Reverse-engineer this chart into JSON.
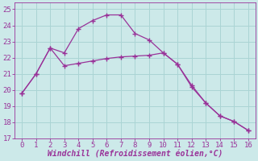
{
  "line1_x": [
    0,
    1,
    2,
    3,
    4,
    5,
    6,
    7,
    8,
    9,
    10,
    11,
    12,
    13,
    14,
    15,
    16
  ],
  "line1_y": [
    19.8,
    21.0,
    22.6,
    22.3,
    23.8,
    24.3,
    24.65,
    24.65,
    23.5,
    23.1,
    22.3,
    21.6,
    20.2,
    19.2,
    18.4,
    18.05,
    17.5
  ],
  "line2_x": [
    0,
    1,
    2,
    3,
    4,
    5,
    6,
    7,
    8,
    9,
    10,
    11,
    12,
    13,
    14,
    15,
    16
  ],
  "line2_y": [
    19.8,
    21.0,
    22.6,
    21.5,
    21.65,
    21.8,
    21.95,
    22.05,
    22.1,
    22.15,
    22.3,
    21.6,
    20.3,
    19.2,
    18.4,
    18.05,
    17.5
  ],
  "color": "#993399",
  "bg_color": "#cce9e9",
  "grid_color": "#aad4d4",
  "xlabel": "Windchill (Refroidissement éolien,°C)",
  "xlim": [
    -0.5,
    16.5
  ],
  "ylim": [
    17,
    25.4
  ],
  "yticks": [
    17,
    18,
    19,
    20,
    21,
    22,
    23,
    24,
    25
  ],
  "xticks": [
    0,
    1,
    2,
    3,
    4,
    5,
    6,
    7,
    8,
    9,
    10,
    11,
    12,
    13,
    14,
    15,
    16
  ],
  "xlabel_fontsize": 7,
  "tick_fontsize": 6.5
}
